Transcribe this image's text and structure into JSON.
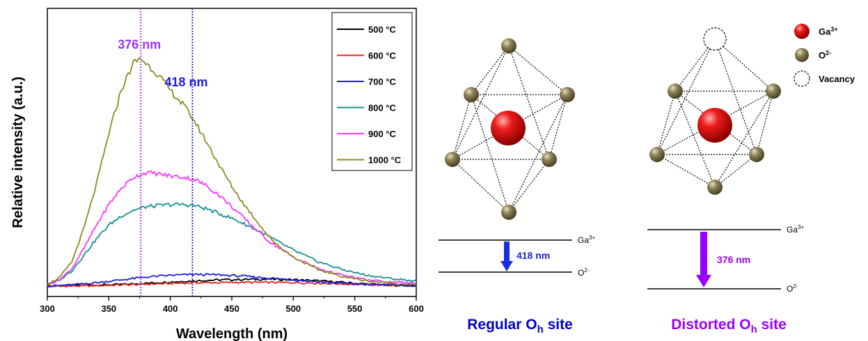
{
  "chart_data": {
    "type": "line",
    "xlabel": "Wavelength (nm)",
    "ylabel": "Relative intensity (a.u.)",
    "xlim": [
      300,
      600
    ],
    "ylim": [
      0,
      1.0
    ],
    "xticks": [
      "300",
      "350",
      "400",
      "450",
      "500",
      "550",
      "600"
    ],
    "grid": false,
    "legend_position": "top-right",
    "series": [
      {
        "name": "500 °C",
        "color": "#000000",
        "x": [
          300,
          320,
          340,
          360,
          380,
          400,
          420,
          440,
          460,
          480,
          500,
          520,
          540,
          560,
          580,
          600
        ],
        "y": [
          0.003,
          0.005,
          0.007,
          0.01,
          0.015,
          0.021,
          0.026,
          0.03,
          0.032,
          0.033,
          0.031,
          0.026,
          0.019,
          0.012,
          0.007,
          0.004
        ]
      },
      {
        "name": "600 °C",
        "color": "#e8241c",
        "x": [
          300,
          320,
          340,
          360,
          380,
          400,
          420,
          440,
          460,
          480,
          500,
          520,
          540,
          560,
          580,
          600
        ],
        "y": [
          0.002,
          0.003,
          0.005,
          0.008,
          0.011,
          0.014,
          0.017,
          0.018,
          0.019,
          0.019,
          0.018,
          0.016,
          0.012,
          0.009,
          0.006,
          0.004
        ]
      },
      {
        "name": "700 °C",
        "color": "#1c1ce0",
        "x": [
          300,
          320,
          340,
          360,
          380,
          400,
          420,
          440,
          460,
          480,
          500,
          520,
          540,
          560,
          580,
          600
        ],
        "y": [
          0.003,
          0.008,
          0.018,
          0.03,
          0.042,
          0.05,
          0.054,
          0.052,
          0.046,
          0.038,
          0.03,
          0.022,
          0.015,
          0.01,
          0.007,
          0.005
        ]
      },
      {
        "name": "800 °C",
        "color": "#168f8f",
        "x": [
          300,
          310,
          320,
          330,
          340,
          350,
          360,
          370,
          380,
          390,
          400,
          410,
          420,
          430,
          440,
          450,
          460,
          470,
          480,
          490,
          500,
          520,
          540,
          560,
          580,
          600
        ],
        "y": [
          0.01,
          0.03,
          0.07,
          0.14,
          0.21,
          0.27,
          0.31,
          0.335,
          0.35,
          0.355,
          0.36,
          0.36,
          0.355,
          0.34,
          0.32,
          0.3,
          0.275,
          0.25,
          0.22,
          0.19,
          0.16,
          0.11,
          0.075,
          0.05,
          0.035,
          0.025
        ]
      },
      {
        "name": "900 °C",
        "color": "#ff33ff",
        "x": [
          300,
          310,
          320,
          330,
          340,
          350,
          360,
          370,
          380,
          390,
          400,
          410,
          420,
          430,
          440,
          450,
          460,
          470,
          480,
          490,
          500,
          520,
          540,
          560,
          580,
          600
        ],
        "y": [
          0.01,
          0.03,
          0.08,
          0.17,
          0.27,
          0.36,
          0.43,
          0.48,
          0.5,
          0.495,
          0.485,
          0.48,
          0.47,
          0.44,
          0.4,
          0.35,
          0.3,
          0.25,
          0.2,
          0.165,
          0.13,
          0.08,
          0.05,
          0.03,
          0.02,
          0.015
        ]
      },
      {
        "name": "1000 °C",
        "color": "#8c8a1e",
        "x": [
          300,
          310,
          320,
          330,
          340,
          350,
          360,
          370,
          376,
          380,
          390,
          400,
          410,
          418,
          430,
          440,
          450,
          460,
          470,
          480,
          490,
          500,
          520,
          540,
          560,
          580,
          600
        ],
        "y": [
          0.01,
          0.04,
          0.11,
          0.26,
          0.45,
          0.67,
          0.86,
          0.98,
          1.0,
          0.98,
          0.93,
          0.86,
          0.8,
          0.74,
          0.63,
          0.53,
          0.44,
          0.36,
          0.29,
          0.22,
          0.17,
          0.13,
          0.075,
          0.045,
          0.025,
          0.015,
          0.01
        ]
      }
    ],
    "annotations": [
      {
        "text": "376 nm",
        "x": 376,
        "color": "#9933ff"
      },
      {
        "text": "418 nm",
        "x": 418,
        "color": "#1c1ce0"
      }
    ]
  },
  "schematics": {
    "regular": {
      "title_main": "Regular O",
      "title_sub": "h",
      "title_tail": " site",
      "title_color": "#0000cc",
      "upper_level": "Ga",
      "upper_sup": "3+",
      "lower_level": "O",
      "lower_sup": "2-",
      "transition": "418 nm",
      "transition_color": "#1c1ce0"
    },
    "distorted": {
      "title_main": "Distorted O",
      "title_sub": "h",
      "title_tail": " site",
      "title_color": "#9900ff",
      "upper_level": "Ga",
      "upper_sup": "3+",
      "lower_level": "O",
      "lower_sup": "2-",
      "transition": "376 nm",
      "transition_color": "#9900ff"
    }
  },
  "legend_right": {
    "items": [
      {
        "label": "Ga",
        "sup": "3+",
        "icon": "red-sphere-icon"
      },
      {
        "label": "O",
        "sup": "2-",
        "icon": "olive-sphere-icon"
      },
      {
        "label": "Vacancy",
        "sup": "",
        "icon": "dashed-circle-icon"
      }
    ]
  },
  "colors": {
    "ga_sphere": "#e00000",
    "o_sphere": "#8b7d55"
  }
}
